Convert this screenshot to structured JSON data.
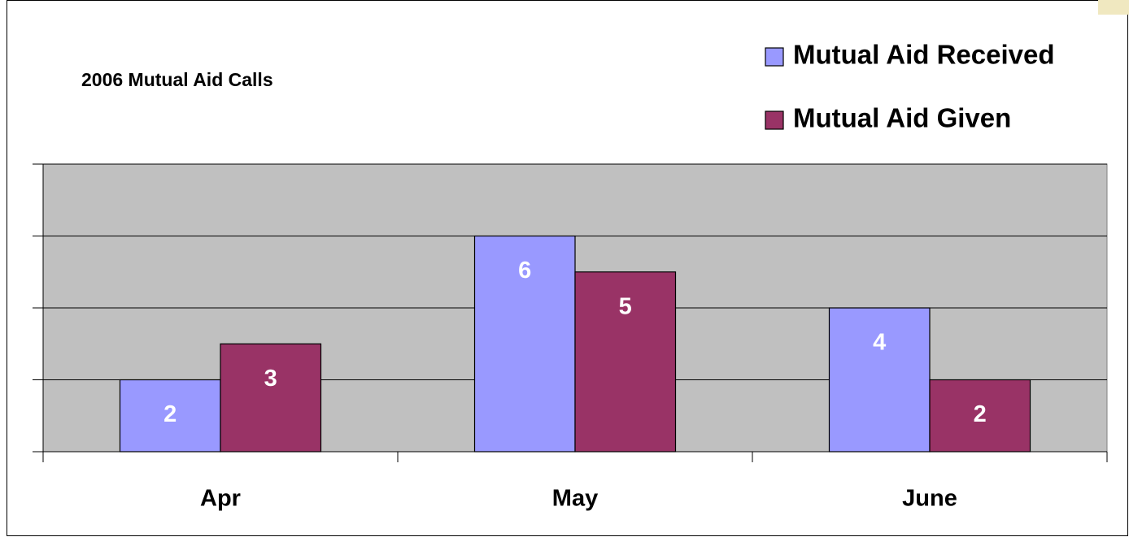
{
  "chart_data": {
    "type": "bar",
    "title": "2006 Mutual Aid Calls",
    "categories": [
      "Apr",
      "May",
      "June"
    ],
    "series": [
      {
        "name": "Mutual Aid Received",
        "color": "#9999ff",
        "values": [
          2,
          6,
          4
        ]
      },
      {
        "name": "Mutual Aid Given",
        "color": "#993366",
        "values": [
          3,
          5,
          2
        ]
      }
    ],
    "ylim": [
      0,
      8
    ],
    "yticks": [
      0,
      2,
      4,
      6,
      8
    ],
    "grid": true,
    "legend": "top-right",
    "plot_background": "#c0c0c0"
  }
}
